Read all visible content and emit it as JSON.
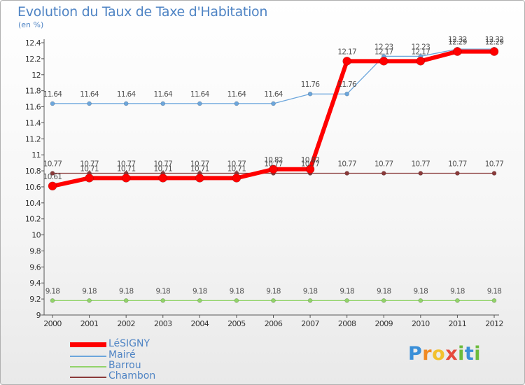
{
  "title": "Evolution du Taux de Taxe d'Habitation",
  "unit": "(en %)",
  "brand": "Proxiti",
  "chart_data": {
    "type": "line",
    "title": "Evolution du Taux de Taxe d'Habitation",
    "ylabel": "(en %)",
    "xlabel": "",
    "ylim": [
      9,
      12.4
    ],
    "yticks": [
      9,
      9.2,
      9.4,
      9.6,
      9.8,
      10,
      10.2,
      10.4,
      10.6,
      10.8,
      11,
      11.2,
      11.4,
      11.6,
      11.8,
      12,
      12.2,
      12.4
    ],
    "x": [
      "2000",
      "2001",
      "2002",
      "2003",
      "2004",
      "2005",
      "2006",
      "2007",
      "2008",
      "2009",
      "2010",
      "2011",
      "2012"
    ],
    "grid": false,
    "legend": "bottom-left",
    "series": [
      {
        "name": "LéSIGNY",
        "color": "#ff0000",
        "values": [
          10.61,
          10.71,
          10.71,
          10.71,
          10.71,
          10.71,
          10.82,
          10.82,
          12.17,
          12.17,
          12.17,
          12.29,
          12.29
        ]
      },
      {
        "name": "Mairé",
        "color": "#6ca6dc",
        "values": [
          11.64,
          11.64,
          11.64,
          11.64,
          11.64,
          11.64,
          11.64,
          11.76,
          11.76,
          12.23,
          12.23,
          12.32,
          12.32
        ]
      },
      {
        "name": "Barrou",
        "color": "#92d36a",
        "values": [
          9.18,
          9.18,
          9.18,
          9.18,
          9.18,
          9.18,
          9.18,
          9.18,
          9.18,
          9.18,
          9.18,
          9.18,
          9.18
        ]
      },
      {
        "name": "Chambon",
        "color": "#8a3a3a",
        "values": [
          10.77,
          10.77,
          10.77,
          10.77,
          10.77,
          10.77,
          10.77,
          10.77,
          10.77,
          10.77,
          10.77,
          10.77,
          10.77
        ]
      }
    ]
  }
}
